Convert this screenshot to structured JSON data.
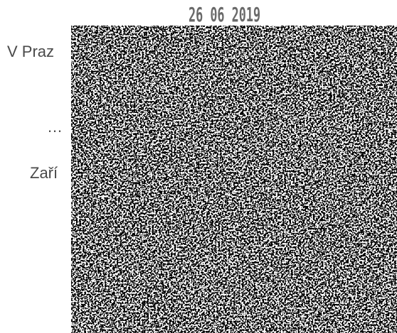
{
  "stamp_date": "26 06 2019",
  "lines": [
    "V Praz",
    "…",
    "Zaří"
  ]
}
